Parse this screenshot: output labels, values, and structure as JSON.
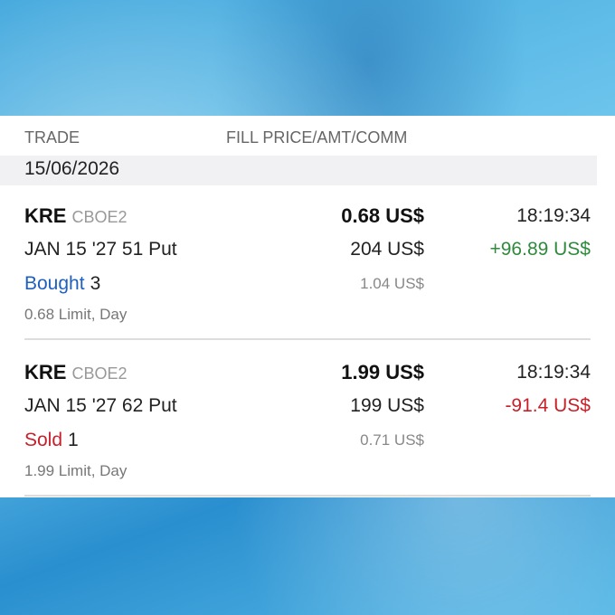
{
  "header": {
    "columns": [
      "TRADE",
      "FILL PRICE/AMT/COMM"
    ],
    "date": "15/06/2026"
  },
  "trades": [
    {
      "symbol": "KRE",
      "exchange": "CBOE2",
      "price": "0.68 US$",
      "time": "18:19:34",
      "contract": "JAN 15 '27 51 Put",
      "amount": "204 US$",
      "pnl": "+96.89 US$",
      "action": "Bought",
      "quantity": "3",
      "commission": "1.04 US$",
      "order": "0.68 Limit, Day"
    },
    {
      "symbol": "KRE",
      "exchange": "CBOE2",
      "price": "1.99 US$",
      "time": "18:19:34",
      "contract": "JAN 15 '27 62 Put",
      "amount": "199 US$",
      "pnl": "-91.4 US$",
      "action": "Sold",
      "quantity": "1",
      "commission": "0.71 US$",
      "order": "1.99 Limit, Day"
    }
  ]
}
